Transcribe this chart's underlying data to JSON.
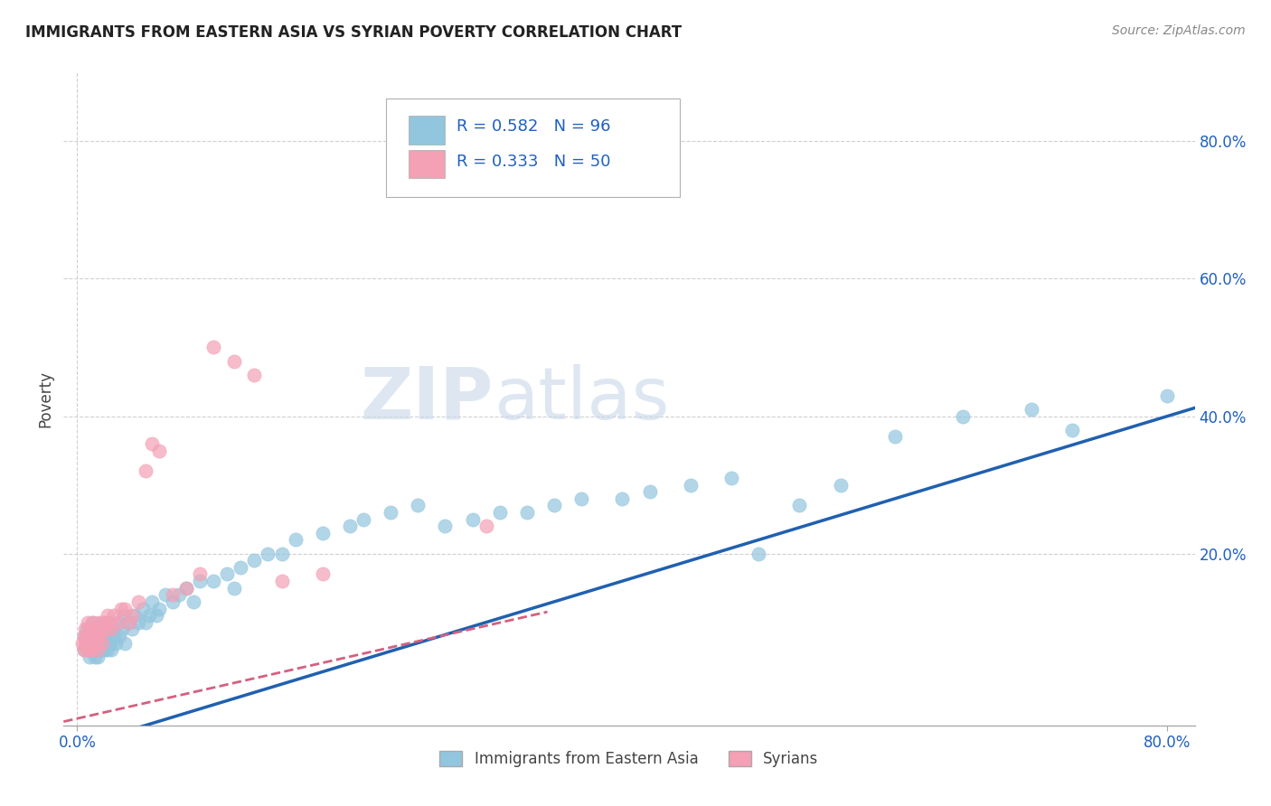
{
  "title": "IMMIGRANTS FROM EASTERN ASIA VS SYRIAN POVERTY CORRELATION CHART",
  "source": "Source: ZipAtlas.com",
  "xlabel": "",
  "ylabel": "Poverty",
  "xlim": [
    -0.01,
    0.82
  ],
  "ylim": [
    -0.05,
    0.9
  ],
  "xtick_labels": [
    "0.0%",
    "",
    "",
    "",
    "80.0%"
  ],
  "xtick_vals": [
    0.0,
    0.2,
    0.4,
    0.6,
    0.8
  ],
  "ytick_labels": [
    "20.0%",
    "40.0%",
    "60.0%",
    "80.0%"
  ],
  "ytick_vals": [
    0.2,
    0.4,
    0.6,
    0.8
  ],
  "blue_R": 0.582,
  "blue_N": 96,
  "pink_R": 0.333,
  "pink_N": 50,
  "blue_color": "#92c5de",
  "pink_color": "#f4a0b5",
  "blue_line_color": "#2060b0",
  "pink_line_color": "#d46080",
  "watermark_zip": "ZIP",
  "watermark_atlas": "atlas",
  "legend_label_1": "Immigrants from Eastern Asia",
  "legend_label_2": "Syrians",
  "background_color": "#ffffff",
  "plot_bg_color": "#ffffff",
  "grid_color": "#d0d0d0",
  "title_color": "#222222",
  "axis_label_color": "#444444",
  "tick_label_color": "#2060c0",
  "source_color": "#888888",
  "blue_line_intercept": -0.08,
  "blue_line_slope": 0.6,
  "pink_line_intercept": -0.04,
  "pink_line_slope": 0.45,
  "blue_scatter_x": [
    0.005,
    0.005,
    0.007,
    0.007,
    0.008,
    0.008,
    0.009,
    0.01,
    0.01,
    0.01,
    0.011,
    0.011,
    0.012,
    0.012,
    0.013,
    0.013,
    0.013,
    0.014,
    0.014,
    0.015,
    0.015,
    0.015,
    0.016,
    0.016,
    0.017,
    0.017,
    0.018,
    0.018,
    0.018,
    0.019,
    0.02,
    0.02,
    0.021,
    0.021,
    0.022,
    0.022,
    0.023,
    0.024,
    0.024,
    0.025,
    0.025,
    0.026,
    0.027,
    0.028,
    0.03,
    0.031,
    0.033,
    0.034,
    0.035,
    0.037,
    0.04,
    0.042,
    0.045,
    0.048,
    0.05,
    0.053,
    0.055,
    0.058,
    0.06,
    0.065,
    0.07,
    0.075,
    0.08,
    0.085,
    0.09,
    0.1,
    0.11,
    0.115,
    0.12,
    0.13,
    0.14,
    0.15,
    0.16,
    0.18,
    0.2,
    0.21,
    0.23,
    0.25,
    0.27,
    0.29,
    0.31,
    0.33,
    0.35,
    0.37,
    0.4,
    0.42,
    0.45,
    0.48,
    0.5,
    0.53,
    0.56,
    0.6,
    0.65,
    0.7,
    0.73,
    0.8
  ],
  "blue_scatter_y": [
    0.06,
    0.08,
    0.07,
    0.09,
    0.06,
    0.08,
    0.05,
    0.07,
    0.09,
    0.06,
    0.08,
    0.1,
    0.06,
    0.08,
    0.07,
    0.09,
    0.05,
    0.08,
    0.06,
    0.07,
    0.09,
    0.05,
    0.08,
    0.06,
    0.07,
    0.09,
    0.06,
    0.08,
    0.1,
    0.07,
    0.08,
    0.06,
    0.09,
    0.07,
    0.08,
    0.06,
    0.1,
    0.07,
    0.09,
    0.08,
    0.06,
    0.09,
    0.08,
    0.07,
    0.1,
    0.08,
    0.09,
    0.11,
    0.07,
    0.1,
    0.09,
    0.11,
    0.1,
    0.12,
    0.1,
    0.11,
    0.13,
    0.11,
    0.12,
    0.14,
    0.13,
    0.14,
    0.15,
    0.13,
    0.16,
    0.16,
    0.17,
    0.15,
    0.18,
    0.19,
    0.2,
    0.2,
    0.22,
    0.23,
    0.24,
    0.25,
    0.26,
    0.27,
    0.24,
    0.25,
    0.26,
    0.26,
    0.27,
    0.28,
    0.28,
    0.29,
    0.3,
    0.31,
    0.2,
    0.27,
    0.3,
    0.37,
    0.4,
    0.41,
    0.38,
    0.43
  ],
  "pink_scatter_x": [
    0.004,
    0.005,
    0.005,
    0.006,
    0.006,
    0.007,
    0.007,
    0.008,
    0.008,
    0.009,
    0.009,
    0.01,
    0.01,
    0.011,
    0.011,
    0.012,
    0.012,
    0.013,
    0.013,
    0.014,
    0.015,
    0.015,
    0.016,
    0.017,
    0.018,
    0.018,
    0.02,
    0.021,
    0.022,
    0.023,
    0.025,
    0.027,
    0.03,
    0.032,
    0.035,
    0.038,
    0.04,
    0.045,
    0.05,
    0.055,
    0.06,
    0.07,
    0.08,
    0.09,
    0.1,
    0.115,
    0.13,
    0.15,
    0.18,
    0.3
  ],
  "pink_scatter_y": [
    0.07,
    0.08,
    0.06,
    0.09,
    0.07,
    0.08,
    0.06,
    0.1,
    0.07,
    0.08,
    0.06,
    0.09,
    0.07,
    0.08,
    0.06,
    0.1,
    0.07,
    0.08,
    0.09,
    0.07,
    0.08,
    0.06,
    0.1,
    0.08,
    0.07,
    0.09,
    0.1,
    0.09,
    0.11,
    0.1,
    0.09,
    0.11,
    0.1,
    0.12,
    0.12,
    0.1,
    0.11,
    0.13,
    0.32,
    0.36,
    0.35,
    0.14,
    0.15,
    0.17,
    0.5,
    0.48,
    0.46,
    0.16,
    0.17,
    0.24
  ]
}
